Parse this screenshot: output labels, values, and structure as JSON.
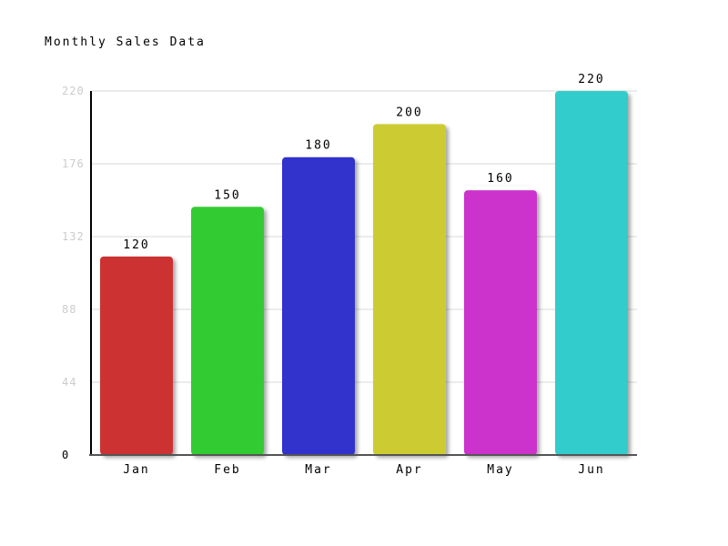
{
  "chart_data": {
    "type": "bar",
    "title": "Monthly Sales Data",
    "xlabel": "",
    "ylabel": "",
    "categories": [
      "Jan",
      "Feb",
      "Mar",
      "Apr",
      "May",
      "Jun"
    ],
    "values": [
      120,
      150,
      180,
      200,
      160,
      220
    ],
    "data_labels": [
      "120",
      "150",
      "180",
      "200",
      "160",
      "220"
    ],
    "colors": [
      "#cc3333",
      "#33cc33",
      "#3333cc",
      "#cccc33",
      "#cc33cc",
      "#33cccc"
    ],
    "ylim": [
      0,
      220
    ],
    "yticks": [
      0,
      44,
      88,
      132,
      176,
      220
    ],
    "ytick_labels": [
      "0",
      "44",
      "88",
      "132",
      "176",
      "220"
    ],
    "grid": true,
    "legend": "none",
    "axis_color": "#000000",
    "grid_color": "#e6e6e6",
    "tick_label_color": "#cccccc"
  }
}
